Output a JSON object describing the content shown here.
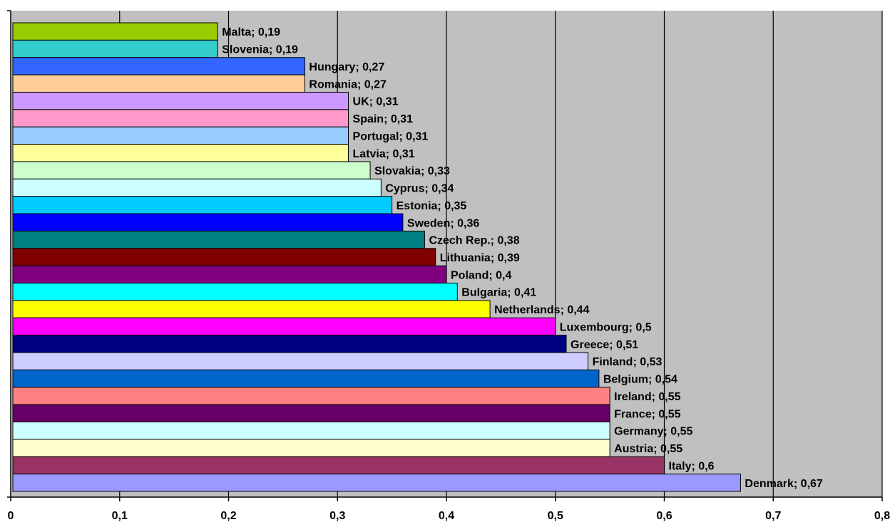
{
  "chart_data": {
    "type": "bar",
    "orientation": "horizontal",
    "title": "",
    "xlabel": "",
    "ylabel": "",
    "xlim": [
      0,
      0.8
    ],
    "x_ticks": [
      "0",
      "0,1",
      "0,2",
      "0,3",
      "0,4",
      "0,5",
      "0,6",
      "0,7",
      "0,8"
    ],
    "grid": "vertical",
    "legend": "none",
    "plot_background": "#c0c0c0",
    "bars": [
      {
        "category": "Malta",
        "value": 0.19,
        "label": "Malta; 0,19",
        "color": "#99cc00"
      },
      {
        "category": "Slovenia",
        "value": 0.19,
        "label": "Slovenia; 0,19",
        "color": "#33cccc"
      },
      {
        "category": "Hungary",
        "value": 0.27,
        "label": "Hungary; 0,27",
        "color": "#3366ff"
      },
      {
        "category": "Romania",
        "value": 0.27,
        "label": "Romania; 0,27",
        "color": "#ffcc99"
      },
      {
        "category": "UK",
        "value": 0.31,
        "label": "UK; 0,31",
        "color": "#cc99ff"
      },
      {
        "category": "Spain",
        "value": 0.31,
        "label": "Spain; 0,31",
        "color": "#ff99cc"
      },
      {
        "category": "Portugal",
        "value": 0.31,
        "label": "Portugal; 0,31",
        "color": "#99ccff"
      },
      {
        "category": "Latvia",
        "value": 0.31,
        "label": "Latvia; 0,31",
        "color": "#ffff99"
      },
      {
        "category": "Slovakia",
        "value": 0.33,
        "label": "Slovakia; 0,33",
        "color": "#ccffcc"
      },
      {
        "category": "Cyprus",
        "value": 0.34,
        "label": "Cyprus; 0,34",
        "color": "#ccffff"
      },
      {
        "category": "Estonia",
        "value": 0.35,
        "label": "Estonia; 0,35",
        "color": "#00ccff"
      },
      {
        "category": "Sweden",
        "value": 0.36,
        "label": "Sweden; 0,36",
        "color": "#0000ff"
      },
      {
        "category": "Czech Rep.",
        "value": 0.38,
        "label": "Czech Rep.; 0,38",
        "color": "#008080"
      },
      {
        "category": "Lithuania",
        "value": 0.39,
        "label": "Lithuania; 0,39",
        "color": "#800000"
      },
      {
        "category": "Poland",
        "value": 0.4,
        "label": "Poland; 0,4",
        "color": "#800080"
      },
      {
        "category": "Bulgaria",
        "value": 0.41,
        "label": "Bulgaria; 0,41",
        "color": "#00ffff"
      },
      {
        "category": "Netherlands",
        "value": 0.44,
        "label": "Netherlands; 0,44",
        "color": "#ffff00"
      },
      {
        "category": "Luxembourg",
        "value": 0.5,
        "label": "Luxembourg; 0,5",
        "color": "#ff00ff"
      },
      {
        "category": "Greece",
        "value": 0.51,
        "label": "Greece; 0,51",
        "color": "#000080"
      },
      {
        "category": "Finland",
        "value": 0.53,
        "label": "Finland; 0,53",
        "color": "#ccccff"
      },
      {
        "category": "Belgium",
        "value": 0.54,
        "label": "Belgium; 0,54",
        "color": "#0066cc"
      },
      {
        "category": "Ireland",
        "value": 0.55,
        "label": "Ireland; 0,55",
        "color": "#ff8080"
      },
      {
        "category": "France",
        "value": 0.55,
        "label": "France; 0,55",
        "color": "#660066"
      },
      {
        "category": "Germany",
        "value": 0.55,
        "label": "Germany; 0,55",
        "color": "#ccffff"
      },
      {
        "category": "Austria",
        "value": 0.55,
        "label": "Austria; 0,55",
        "color": "#ffffcc"
      },
      {
        "category": "Italy",
        "value": 0.6,
        "label": "Italy; 0,6",
        "color": "#993366"
      },
      {
        "category": "Denmark",
        "value": 0.67,
        "label": "Denmark; 0,67",
        "color": "#9999ff"
      }
    ]
  }
}
